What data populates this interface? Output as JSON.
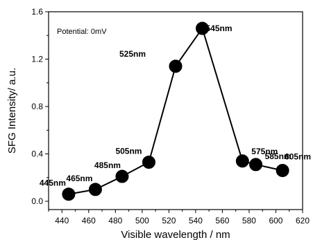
{
  "chart_data": {
    "type": "line",
    "title": "",
    "xlabel": "Visible wavelength / nm",
    "ylabel": "SFG Intensity/ a.u.",
    "annotation": "Potential: 0mV",
    "xlim": [
      430,
      620
    ],
    "ylim": [
      -0.07,
      1.6
    ],
    "x_ticks": [
      440,
      460,
      480,
      500,
      520,
      540,
      560,
      580,
      600,
      620
    ],
    "y_ticks": [
      0.0,
      0.4,
      0.8,
      1.2,
      1.6
    ],
    "x_tick_labels": [
      "440",
      "460",
      "480",
      "500",
      "520",
      "540",
      "560",
      "580",
      "600",
      "620"
    ],
    "y_tick_labels": [
      "0.0",
      "0.4",
      "0.8",
      "1.2",
      "1.6"
    ],
    "grid": false,
    "series": [
      {
        "x": [
          445,
          465,
          485,
          505,
          525,
          545,
          575,
          585,
          605
        ],
        "y": [
          0.06,
          0.1,
          0.21,
          0.33,
          1.14,
          1.46,
          0.34,
          0.31,
          0.26
        ],
        "point_labels": [
          "445nm",
          "465nm",
          "485nm",
          "505nm",
          "525nm",
          "545nm",
          "575nm",
          "585nm",
          "605nm"
        ],
        "color": "#000000"
      }
    ]
  }
}
